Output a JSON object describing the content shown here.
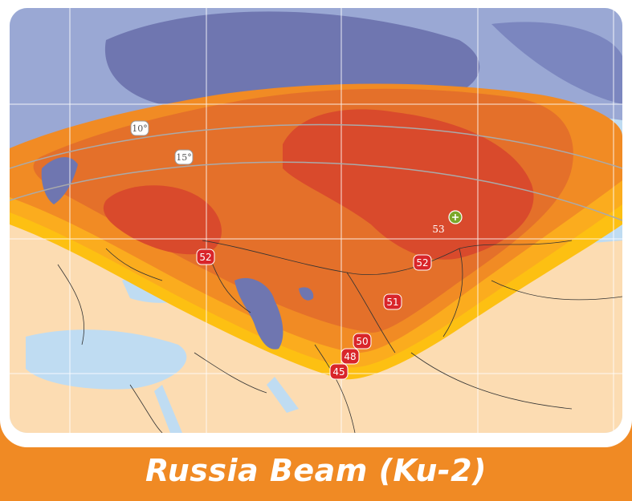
{
  "title": "Russia Beam (Ku-2)",
  "elevation_labels": [
    "10°",
    "15°"
  ],
  "eirp_labels": [
    "52",
    "52",
    "51",
    "50",
    "48",
    "45"
  ],
  "peak_value": "53",
  "colors": {
    "banner": "#f08a24",
    "sea": "#bfdcf2",
    "land": "#fcdcb2",
    "contour_45": "#fdc012",
    "contour_48": "#fbac1e",
    "contour_50": "#f18b24",
    "contour_51": "#e4702a",
    "contour_52": "#d94a2c",
    "marker": "#d9252a",
    "peak_marker": "#7ba82a"
  }
}
